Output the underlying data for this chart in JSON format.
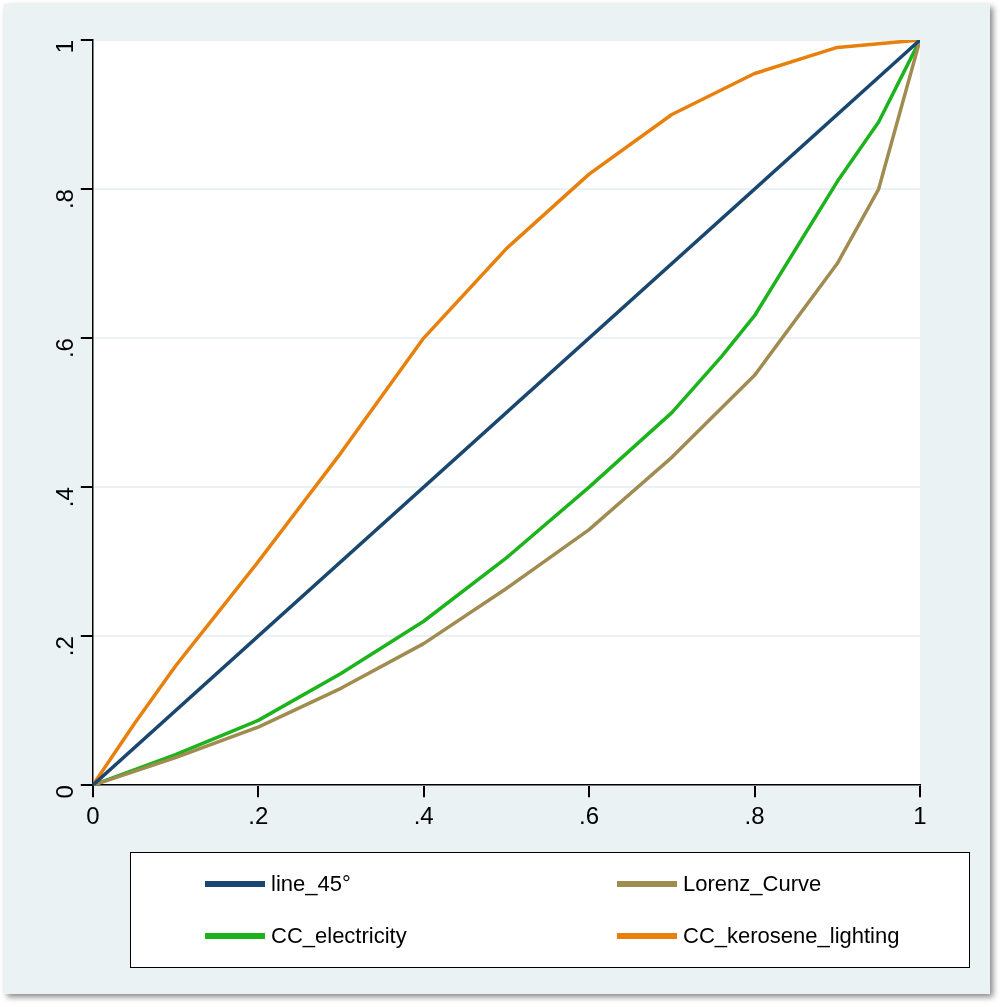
{
  "chart_data": {
    "type": "line",
    "xlim": [
      0,
      1
    ],
    "xticks": [
      0,
      {
        "value": 0.2,
        "label": ".2"
      },
      {
        "value": 0.4,
        "label": ".4"
      },
      {
        "value": 0.6,
        "label": ".6"
      },
      {
        "value": 0.8,
        "label": ".8"
      },
      1
    ],
    "ylim": [
      0,
      1
    ],
    "yticks": [
      0,
      {
        "value": 0.2,
        "label": ".2"
      },
      {
        "value": 0.4,
        "label": ".4"
      },
      {
        "value": 0.6,
        "label": ".6"
      },
      {
        "value": 0.8,
        "label": ".8"
      },
      1
    ],
    "grid": "y",
    "legend": "bottom",
    "marker": "none",
    "line_style": "solid",
    "series": [
      {
        "name": "line_45°",
        "color": "#1a476f",
        "x": [
          0,
          1
        ],
        "values": [
          0,
          1
        ]
      },
      {
        "name": "Lorenz_Curve",
        "color": "#a08c50",
        "x": [
          0,
          0.1,
          0.2,
          0.3,
          0.4,
          0.5,
          0.6,
          0.7,
          0.8,
          0.9,
          0.95,
          1
        ],
        "values": [
          0,
          0.037,
          0.078,
          0.13,
          0.19,
          0.264,
          0.343,
          0.44,
          0.55,
          0.7,
          0.8,
          1
        ]
      },
      {
        "name": "CC_electricity",
        "color": "#1cb31c",
        "x": [
          0,
          0.1,
          0.2,
          0.3,
          0.4,
          0.5,
          0.6,
          0.7,
          0.76,
          0.8,
          0.9,
          0.95,
          1
        ],
        "values": [
          0,
          0.041,
          0.087,
          0.15,
          0.22,
          0.305,
          0.4,
          0.5,
          0.575,
          0.63,
          0.81,
          0.89,
          1
        ]
      },
      {
        "name": "CC_kerosene_lighting",
        "color": "#e8800d",
        "x": [
          0,
          0.05,
          0.1,
          0.15,
          0.2,
          0.3,
          0.4,
          0.5,
          0.6,
          0.7,
          0.8,
          0.9,
          1
        ],
        "values": [
          0,
          0.082,
          0.16,
          0.23,
          0.3,
          0.446,
          0.6,
          0.72,
          0.82,
          0.9,
          0.955,
          0.99,
          1
        ]
      }
    ]
  }
}
